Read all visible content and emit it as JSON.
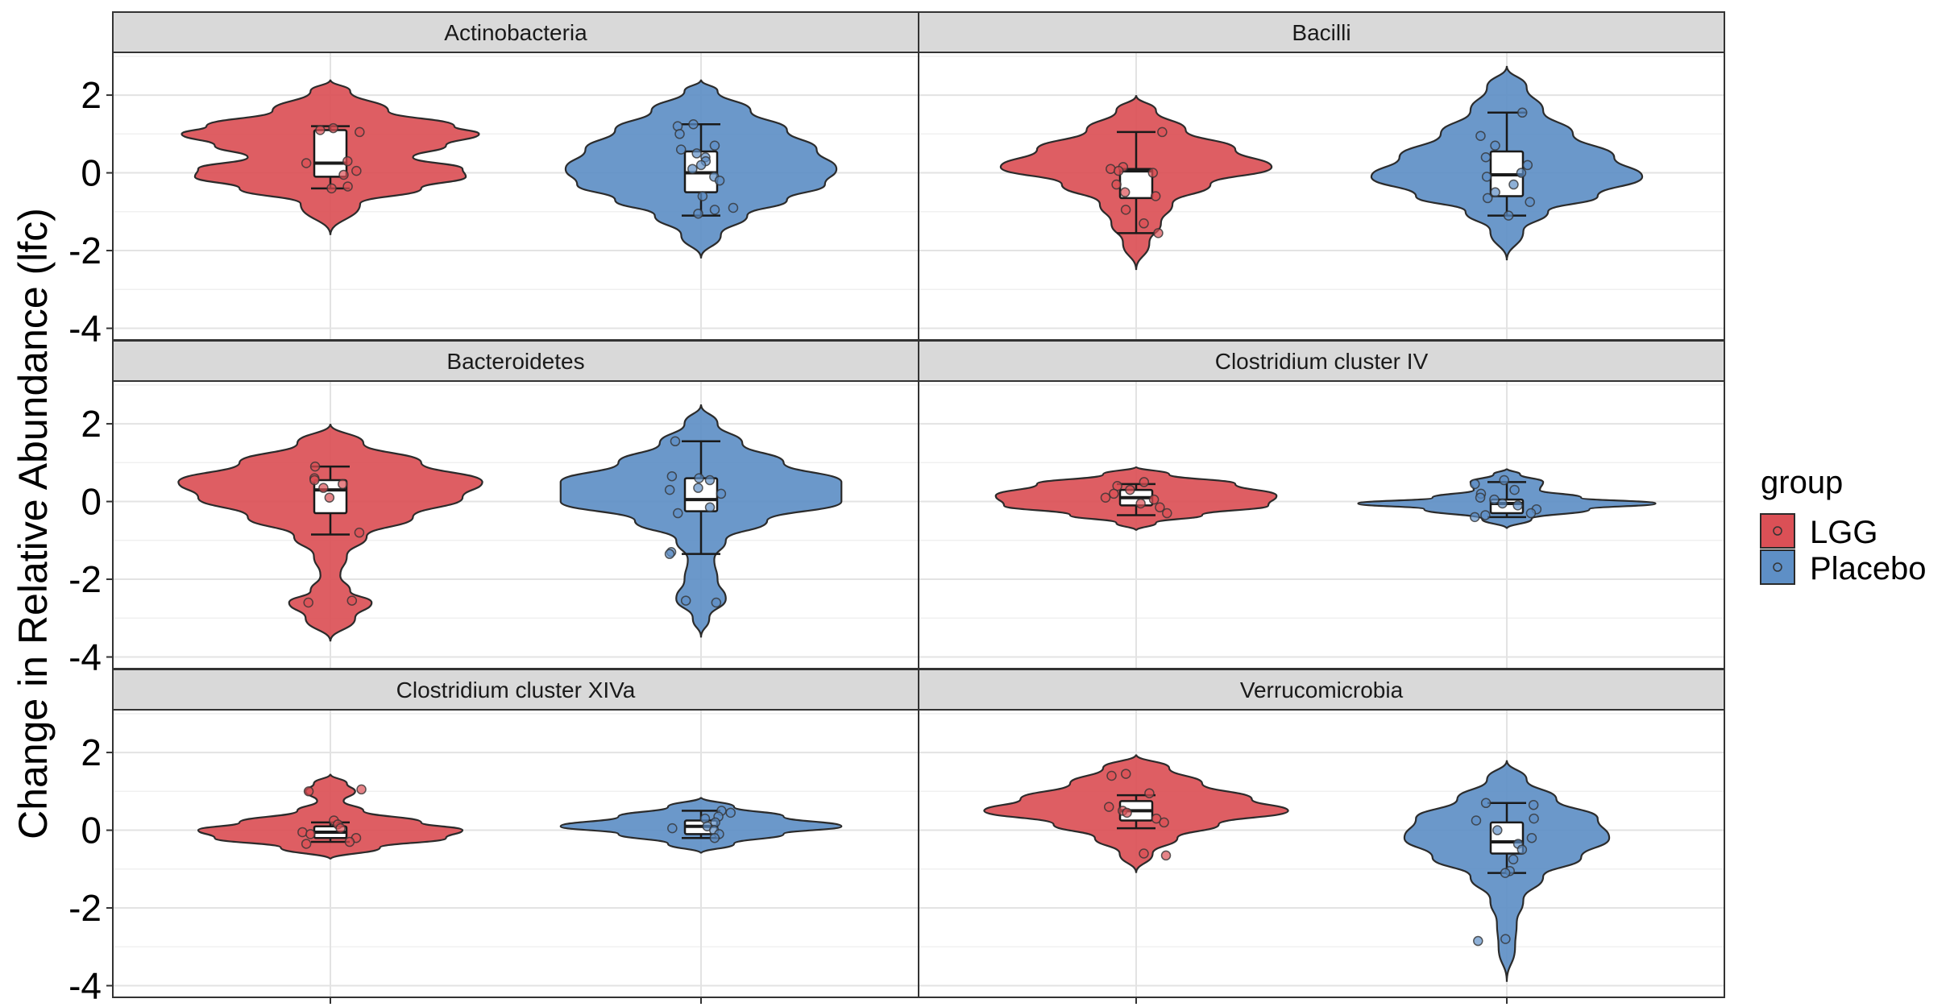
{
  "chart_data": {
    "type": "violin",
    "ylabel": "Change in Relative Abundance (lfc)",
    "xlabel": "",
    "ylim": [
      -4.3,
      3.1
    ],
    "yticks": [
      -4,
      -2,
      0,
      2
    ],
    "ytick_labels": [
      "-4",
      "-2",
      "0",
      "2"
    ],
    "grid": true,
    "legend": {
      "title": "group",
      "position": "right",
      "entries": [
        {
          "label": "LGG",
          "color": "#DB5056"
        },
        {
          "label": "Placebo",
          "color": "#5E8FC6"
        }
      ]
    },
    "panels": [
      {
        "title": "Actinobacteria",
        "groups": [
          {
            "group": "LGG",
            "violin": [
              [
                2.4,
                0
              ],
              [
                2.1,
                0.12
              ],
              [
                1.6,
                0.35
              ],
              [
                1.2,
                0.75
              ],
              [
                1.0,
                0.9
              ],
              [
                0.7,
                0.7
              ],
              [
                0.4,
                0.5
              ],
              [
                0.1,
                0.8
              ],
              [
                -0.1,
                0.82
              ],
              [
                -0.4,
                0.55
              ],
              [
                -0.8,
                0.18
              ],
              [
                -1.6,
                0
              ]
            ],
            "box": {
              "min": -0.4,
              "q1": -0.1,
              "median": 0.25,
              "q3": 1.1,
              "max": 1.2
            },
            "points": [
              1.15,
              1.1,
              1.05,
              0.3,
              0.25,
              0.05,
              -0.05,
              -0.35,
              -0.4
            ]
          },
          {
            "group": "Placebo",
            "violin": [
              [
                2.4,
                0
              ],
              [
                2.1,
                0.1
              ],
              [
                1.6,
                0.3
              ],
              [
                1.1,
                0.52
              ],
              [
                0.6,
                0.7
              ],
              [
                0.1,
                0.82
              ],
              [
                -0.3,
                0.75
              ],
              [
                -0.7,
                0.52
              ],
              [
                -1.1,
                0.28
              ],
              [
                -1.6,
                0.12
              ],
              [
                -2.2,
                0
              ]
            ],
            "box": {
              "min": -1.1,
              "q1": -0.5,
              "median": 0.0,
              "q3": 0.55,
              "max": 1.25
            },
            "points": [
              1.25,
              1.2,
              1.0,
              0.7,
              0.6,
              0.5,
              0.4,
              0.3,
              0.2,
              0.1,
              -0.1,
              -0.2,
              -0.6,
              -0.9,
              -0.95,
              -1.05
            ]
          }
        ]
      },
      {
        "title": "Bacilli",
        "groups": [
          {
            "group": "LGG",
            "violin": [
              [
                2.0,
                0
              ],
              [
                1.6,
                0.12
              ],
              [
                1.1,
                0.3
              ],
              [
                0.6,
                0.6
              ],
              [
                0.15,
                0.82
              ],
              [
                -0.3,
                0.45
              ],
              [
                -0.8,
                0.22
              ],
              [
                -1.3,
                0.15
              ],
              [
                -1.8,
                0.08
              ],
              [
                -2.5,
                0
              ]
            ],
            "box": {
              "min": -1.55,
              "q1": -0.65,
              "median": 0.05,
              "q3": 0.1,
              "max": 1.05
            },
            "points": [
              1.05,
              0.15,
              0.1,
              0.05,
              0.0,
              -0.3,
              -0.5,
              -0.6,
              -0.95,
              -1.3,
              -1.55
            ]
          },
          {
            "group": "Placebo",
            "violin": [
              [
                2.75,
                0
              ],
              [
                2.2,
                0.12
              ],
              [
                1.6,
                0.22
              ],
              [
                1.0,
                0.4
              ],
              [
                0.4,
                0.65
              ],
              [
                -0.1,
                0.82
              ],
              [
                -0.6,
                0.55
              ],
              [
                -1.0,
                0.25
              ],
              [
                -1.5,
                0.1
              ],
              [
                -2.25,
                0
              ]
            ],
            "box": {
              "min": -1.1,
              "q1": -0.6,
              "median": -0.05,
              "q3": 0.55,
              "max": 1.55
            },
            "points": [
              1.55,
              0.95,
              0.7,
              0.4,
              0.2,
              0.0,
              -0.1,
              -0.3,
              -0.5,
              -0.65,
              -0.75,
              -1.1
            ]
          }
        ]
      },
      {
        "title": "Bacteroidetes",
        "groups": [
          {
            "group": "LGG",
            "violin": [
              [
                2.0,
                0
              ],
              [
                1.5,
                0.2
              ],
              [
                1.0,
                0.55
              ],
              [
                0.5,
                0.92
              ],
              [
                0.1,
                0.8
              ],
              [
                -0.4,
                0.5
              ],
              [
                -0.9,
                0.22
              ],
              [
                -1.4,
                0.1
              ],
              [
                -1.9,
                0.06
              ],
              [
                -2.3,
                0.12
              ],
              [
                -2.6,
                0.25
              ],
              [
                -3.0,
                0.15
              ],
              [
                -3.6,
                0
              ]
            ],
            "box": {
              "min": -0.85,
              "q1": -0.3,
              "median": 0.3,
              "q3": 0.55,
              "max": 0.9
            },
            "points": [
              0.9,
              0.6,
              0.55,
              0.45,
              0.35,
              0.1,
              -0.8,
              -2.55,
              -2.6
            ]
          },
          {
            "group": "Placebo",
            "violin": [
              [
                2.5,
                0
              ],
              [
                2.0,
                0.1
              ],
              [
                1.5,
                0.25
              ],
              [
                1.0,
                0.5
              ],
              [
                0.5,
                0.85
              ],
              [
                0.0,
                0.85
              ],
              [
                -0.5,
                0.4
              ],
              [
                -1.0,
                0.15
              ],
              [
                -1.5,
                0.08
              ],
              [
                -2.0,
                0.1
              ],
              [
                -2.5,
                0.15
              ],
              [
                -3.0,
                0.05
              ],
              [
                -3.5,
                0
              ]
            ],
            "box": {
              "min": -1.35,
              "q1": -0.25,
              "median": 0.05,
              "q3": 0.6,
              "max": 1.55
            },
            "points": [
              1.55,
              0.65,
              0.6,
              0.55,
              0.35,
              0.3,
              0.2,
              -0.15,
              -0.3,
              -1.3,
              -1.35,
              -2.55,
              -2.6
            ]
          }
        ]
      },
      {
        "title": "Clostridium cluster IV",
        "groups": [
          {
            "group": "LGG",
            "violin": [
              [
                0.9,
                0
              ],
              [
                0.7,
                0.2
              ],
              [
                0.45,
                0.6
              ],
              [
                0.15,
                0.85
              ],
              [
                -0.1,
                0.8
              ],
              [
                -0.35,
                0.4
              ],
              [
                -0.55,
                0.12
              ],
              [
                -0.75,
                0
              ]
            ],
            "box": {
              "min": -0.35,
              "q1": -0.1,
              "median": 0.1,
              "q3": 0.3,
              "max": 0.45
            },
            "points": [
              0.5,
              0.4,
              0.3,
              0.2,
              0.1,
              0.05,
              -0.05,
              -0.15,
              -0.3
            ]
          },
          {
            "group": "Placebo",
            "violin": [
              [
                0.85,
                0
              ],
              [
                0.7,
                0.08
              ],
              [
                0.5,
                0.22
              ],
              [
                0.3,
                0.2
              ],
              [
                0.1,
                0.45
              ],
              [
                -0.05,
                0.9
              ],
              [
                -0.2,
                0.5
              ],
              [
                -0.45,
                0.15
              ],
              [
                -0.7,
                0
              ]
            ],
            "box": {
              "min": -0.4,
              "q1": -0.3,
              "median": -0.05,
              "q3": 0.05,
              "max": 0.5
            },
            "points": [
              0.55,
              0.45,
              0.3,
              0.2,
              0.1,
              0.05,
              -0.05,
              -0.1,
              -0.2,
              -0.3,
              -0.35,
              -0.4
            ]
          }
        ]
      },
      {
        "title": "Clostridium cluster XIVa",
        "groups": [
          {
            "group": "LGG",
            "violin": [
              [
                1.45,
                0
              ],
              [
                1.2,
                0.1
              ],
              [
                1.0,
                0.15
              ],
              [
                0.75,
                0.08
              ],
              [
                0.5,
                0.2
              ],
              [
                0.2,
                0.55
              ],
              [
                0.0,
                0.8
              ],
              [
                -0.2,
                0.7
              ],
              [
                -0.45,
                0.3
              ],
              [
                -0.75,
                0
              ]
            ],
            "box": {
              "min": -0.3,
              "q1": -0.2,
              "median": -0.05,
              "q3": 0.1,
              "max": 0.2
            },
            "points": [
              1.05,
              1.0,
              0.25,
              0.15,
              0.05,
              -0.05,
              -0.1,
              -0.2,
              -0.3,
              -0.35
            ]
          },
          {
            "group": "Placebo",
            "violin": [
              [
                0.85,
                0
              ],
              [
                0.6,
                0.2
              ],
              [
                0.35,
                0.5
              ],
              [
                0.1,
                0.85
              ],
              [
                -0.1,
                0.5
              ],
              [
                -0.35,
                0.2
              ],
              [
                -0.6,
                0
              ]
            ],
            "box": {
              "min": -0.2,
              "q1": -0.1,
              "median": 0.1,
              "q3": 0.25,
              "max": 0.5
            },
            "points": [
              0.5,
              0.45,
              0.35,
              0.3,
              0.2,
              0.1,
              0.05,
              0.0,
              -0.1,
              -0.2
            ]
          }
        ]
      },
      {
        "title": "Verrucomicrobia",
        "groups": [
          {
            "group": "LGG",
            "violin": [
              [
                1.95,
                0
              ],
              [
                1.6,
                0.2
              ],
              [
                1.2,
                0.4
              ],
              [
                0.8,
                0.7
              ],
              [
                0.5,
                0.92
              ],
              [
                0.15,
                0.5
              ],
              [
                -0.2,
                0.25
              ],
              [
                -0.6,
                0.1
              ],
              [
                -1.1,
                0
              ]
            ],
            "box": {
              "min": 0.05,
              "q1": 0.25,
              "median": 0.5,
              "q3": 0.75,
              "max": 0.9
            },
            "points": [
              1.45,
              1.4,
              0.95,
              0.6,
              0.5,
              0.45,
              0.3,
              0.2,
              -0.6,
              -0.65
            ]
          },
          {
            "group": "Placebo",
            "violin": [
              [
                1.8,
                0
              ],
              [
                1.3,
                0.12
              ],
              [
                0.8,
                0.3
              ],
              [
                0.3,
                0.55
              ],
              [
                -0.2,
                0.62
              ],
              [
                -0.7,
                0.45
              ],
              [
                -1.2,
                0.22
              ],
              [
                -1.8,
                0.1
              ],
              [
                -2.4,
                0.06
              ],
              [
                -3.0,
                0.05
              ],
              [
                -3.9,
                0
              ]
            ],
            "box": {
              "min": -1.1,
              "q1": -0.6,
              "median": -0.3,
              "q3": 0.2,
              "max": 0.7
            },
            "points": [
              0.7,
              0.65,
              0.3,
              0.25,
              0.0,
              -0.2,
              -0.35,
              -0.5,
              -0.75,
              -1.05,
              -1.1,
              -2.8,
              -2.85
            ]
          }
        ]
      }
    ]
  }
}
